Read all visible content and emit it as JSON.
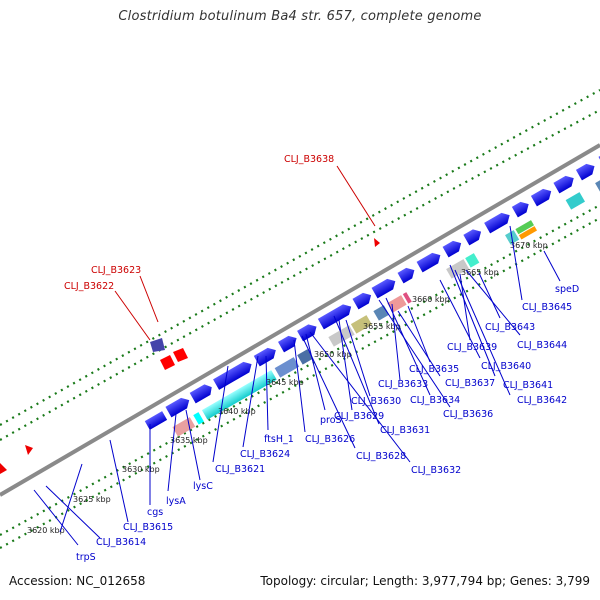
{
  "title": "Clostridium botulinum Ba4 str. 657, complete genome",
  "footer": {
    "accession": "Accession: NC_012658",
    "topology": "Topology: circular; Length: 3,977,794 bp; Genes: 3,799"
  },
  "ticks": [
    "3620 kbp",
    "3625 kbp",
    "3630 kbp",
    "3635 kbp",
    "3640 kbp",
    "3645 kbp",
    "3650 kbp",
    "3655 kbp",
    "3660 kbp",
    "3665 kbp",
    "3670 kbp"
  ],
  "labels": {
    "CLJ_B3638": "CLJ_B3638",
    "CLJ_B3623": "CLJ_B3623",
    "CLJ_B3622": "CLJ_B3622",
    "speD": "speD",
    "CLJ_B3645": "CLJ_B3645",
    "CLJ_B3643": "CLJ_B3643",
    "CLJ_B3644": "CLJ_B3644",
    "CLJ_B3639": "CLJ_B3639",
    "CLJ_B3640": "CLJ_B3640",
    "CLJ_B3641": "CLJ_B3641",
    "CLJ_B3642": "CLJ_B3642",
    "CLJ_B3635": "CLJ_B3635",
    "CLJ_B3637": "CLJ_B3637",
    "CLJ_B3633": "CLJ_B3633",
    "CLJ_B3634": "CLJ_B3634",
    "CLJ_B3636": "CLJ_B3636",
    "CLJ_B3630": "CLJ_B3630",
    "CLJ_B3629": "CLJ_B3629",
    "CLJ_B3631": "CLJ_B3631",
    "proS": "proS",
    "CLJ_B3626": "CLJ_B3626",
    "CLJ_B3628": "CLJ_B3628",
    "CLJ_B3632": "CLJ_B3632",
    "ftsH_1": "ftsH_1",
    "CLJ_B3624": "CLJ_B3624",
    "CLJ_B3621": "CLJ_B3621",
    "lysC": "lysC",
    "lysA": "lysA",
    "cgs": "cgs",
    "CLJ_B3615": "CLJ_B3615",
    "CLJ_B3614": "CLJ_B3614",
    "trpS": "trpS"
  },
  "colors": {
    "forward_cds": "#0000ff",
    "reverse_cds": "#ff0000",
    "backbone": "#888888",
    "gc_skew": "#006600",
    "label_forward": "#0000cc",
    "label_reverse": "#cc0000"
  }
}
